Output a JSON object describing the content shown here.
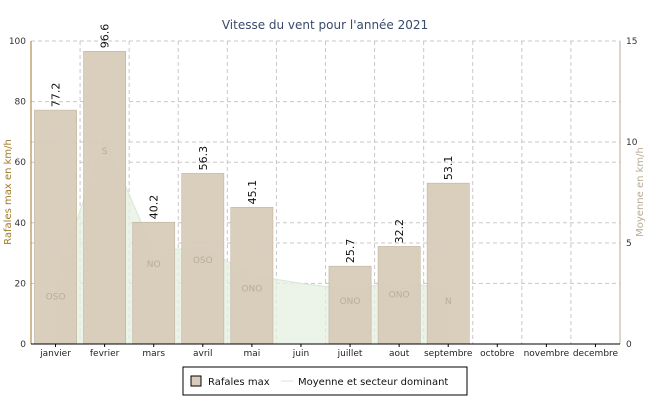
{
  "chart_data": {
    "type": "bar",
    "title": "Vitesse du vent pour l'année 2021",
    "ylabel_left": "Rafales max en km/h",
    "ylabel_right": "Moyenne en km/h",
    "ylim_left": [
      0,
      100
    ],
    "ylim_right": [
      0,
      15
    ],
    "yticks_left": [
      0,
      20,
      40,
      60,
      80,
      100
    ],
    "yticks_right": [
      0,
      5,
      10,
      15
    ],
    "grid": true,
    "legend_position": "bottom",
    "categories": [
      "janvier",
      "fevrier",
      "mars",
      "avril",
      "mai",
      "juin",
      "juillet",
      "aout",
      "septembre",
      "octobre",
      "novembre",
      "decembre"
    ],
    "series": [
      {
        "name": "Rafales max",
        "type": "bar",
        "axis": "left",
        "values": [
          77.2,
          96.6,
          40.2,
          56.3,
          45.1,
          null,
          25.7,
          32.2,
          53.1,
          null,
          null,
          null
        ],
        "value_labels": [
          "77.2",
          "96.6",
          "40.2",
          "56.3",
          "45.1",
          "",
          "25.7",
          "32.2",
          "53.1",
          "",
          "",
          ""
        ],
        "color": "#d8cbb9"
      },
      {
        "name": "Moyenne et secteur dominant",
        "type": "area",
        "axis": "right",
        "values": [
          3.0,
          10.2,
          4.6,
          4.8,
          3.4,
          3.0,
          2.7,
          3.1,
          2.7,
          null,
          null,
          null
        ],
        "directions": [
          "OSO",
          "S",
          "NO",
          "OSO",
          "ONO",
          "",
          "ONO",
          "ONO",
          "N",
          "",
          "",
          ""
        ],
        "color": "#e6f0e3"
      }
    ]
  },
  "colors": {
    "bar_fill": "#d8cbb9",
    "bar_stroke": "#b8ab95",
    "area_fill": "#e6f0e3",
    "area_stroke": "#d9e6d4",
    "grid": "#c8c8c8",
    "left_axis": "#a07a28",
    "right_axis": "#b8ab95",
    "title": "#3a4a6a"
  }
}
